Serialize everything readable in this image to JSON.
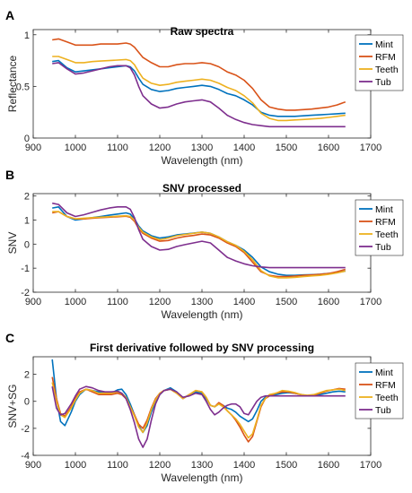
{
  "chart_data": [
    {
      "type": "line",
      "panel_label": "A",
      "title": "Raw spectra",
      "xlabel": "Wavelength (nm)",
      "ylabel": "Reflectance",
      "xlim": [
        900,
        1700
      ],
      "ylim": [
        0,
        1.05
      ],
      "xticks": [
        900,
        1000,
        1100,
        1200,
        1300,
        1400,
        1500,
        1600,
        1700
      ],
      "yticks": [
        0,
        0.5,
        1
      ],
      "ytick_labels": [
        "0",
        "0.5",
        "1"
      ],
      "grid": false,
      "legend": "top-right",
      "x": [
        945,
        960,
        980,
        1000,
        1020,
        1040,
        1060,
        1080,
        1100,
        1120,
        1130,
        1140,
        1150,
        1160,
        1180,
        1200,
        1220,
        1240,
        1260,
        1280,
        1300,
        1320,
        1340,
        1360,
        1380,
        1400,
        1420,
        1440,
        1460,
        1480,
        1500,
        1520,
        1540,
        1560,
        1580,
        1600,
        1620,
        1640
      ],
      "series": [
        {
          "name": "Mint",
          "color": "#0072BD",
          "values": [
            0.74,
            0.75,
            0.68,
            0.64,
            0.65,
            0.66,
            0.67,
            0.68,
            0.69,
            0.7,
            0.69,
            0.65,
            0.58,
            0.52,
            0.47,
            0.45,
            0.46,
            0.48,
            0.49,
            0.5,
            0.51,
            0.5,
            0.47,
            0.43,
            0.41,
            0.37,
            0.32,
            0.25,
            0.22,
            0.21,
            0.21,
            0.21,
            0.215,
            0.22,
            0.225,
            0.23,
            0.235,
            0.24
          ]
        },
        {
          "name": "RFM",
          "color": "#D95319",
          "values": [
            0.95,
            0.96,
            0.93,
            0.9,
            0.9,
            0.9,
            0.91,
            0.91,
            0.91,
            0.92,
            0.91,
            0.88,
            0.83,
            0.78,
            0.73,
            0.69,
            0.69,
            0.71,
            0.72,
            0.72,
            0.73,
            0.72,
            0.69,
            0.64,
            0.61,
            0.56,
            0.48,
            0.37,
            0.3,
            0.28,
            0.27,
            0.27,
            0.275,
            0.28,
            0.29,
            0.3,
            0.32,
            0.35
          ]
        },
        {
          "name": "Teeth",
          "color": "#EDB120",
          "values": [
            0.79,
            0.79,
            0.76,
            0.73,
            0.73,
            0.74,
            0.745,
            0.75,
            0.755,
            0.76,
            0.75,
            0.71,
            0.64,
            0.58,
            0.53,
            0.51,
            0.52,
            0.54,
            0.55,
            0.56,
            0.57,
            0.56,
            0.53,
            0.49,
            0.46,
            0.41,
            0.34,
            0.24,
            0.19,
            0.17,
            0.17,
            0.175,
            0.18,
            0.185,
            0.19,
            0.2,
            0.21,
            0.22
          ]
        },
        {
          "name": "Tub",
          "color": "#7E2F8E",
          "values": [
            0.72,
            0.73,
            0.67,
            0.62,
            0.63,
            0.65,
            0.67,
            0.69,
            0.7,
            0.7,
            0.68,
            0.61,
            0.5,
            0.41,
            0.33,
            0.29,
            0.3,
            0.33,
            0.35,
            0.36,
            0.37,
            0.35,
            0.29,
            0.22,
            0.18,
            0.15,
            0.13,
            0.12,
            0.11,
            0.11,
            0.11,
            0.11,
            0.11,
            0.11,
            0.11,
            0.11,
            0.11,
            0.11
          ]
        }
      ]
    },
    {
      "type": "line",
      "panel_label": "B",
      "title": "SNV processed",
      "xlabel": "Wavelength (nm)",
      "ylabel": "SNV",
      "xlim": [
        900,
        1700
      ],
      "ylim": [
        -2,
        2.1
      ],
      "xticks": [
        900,
        1000,
        1100,
        1200,
        1300,
        1400,
        1500,
        1600,
        1700
      ],
      "yticks": [
        -2,
        -1,
        0,
        1,
        2
      ],
      "ytick_labels": [
        "-2",
        "-1",
        "0",
        "1",
        "2"
      ],
      "grid": false,
      "legend": "top-right",
      "x": [
        945,
        960,
        980,
        1000,
        1020,
        1040,
        1060,
        1080,
        1100,
        1120,
        1130,
        1140,
        1150,
        1160,
        1180,
        1200,
        1220,
        1240,
        1260,
        1280,
        1300,
        1320,
        1340,
        1360,
        1380,
        1400,
        1420,
        1440,
        1460,
        1480,
        1500,
        1520,
        1540,
        1560,
        1580,
        1600,
        1620,
        1640
      ],
      "series": [
        {
          "name": "Mint",
          "color": "#0072BD",
          "values": [
            1.5,
            1.55,
            1.15,
            1.0,
            1.05,
            1.1,
            1.15,
            1.2,
            1.25,
            1.3,
            1.25,
            1.05,
            0.75,
            0.55,
            0.35,
            0.25,
            0.3,
            0.38,
            0.42,
            0.46,
            0.5,
            0.45,
            0.3,
            0.1,
            -0.05,
            -0.25,
            -0.55,
            -0.95,
            -1.15,
            -1.25,
            -1.3,
            -1.3,
            -1.28,
            -1.27,
            -1.25,
            -1.22,
            -1.18,
            -1.12
          ]
        },
        {
          "name": "RFM",
          "color": "#D95319",
          "values": [
            1.3,
            1.35,
            1.15,
            1.05,
            1.05,
            1.08,
            1.1,
            1.12,
            1.14,
            1.16,
            1.12,
            0.95,
            0.65,
            0.45,
            0.25,
            0.12,
            0.15,
            0.25,
            0.32,
            0.36,
            0.42,
            0.38,
            0.25,
            0.05,
            -0.1,
            -0.35,
            -0.75,
            -1.15,
            -1.3,
            -1.35,
            -1.35,
            -1.33,
            -1.3,
            -1.28,
            -1.26,
            -1.22,
            -1.15,
            -1.05
          ]
        },
        {
          "name": "Teeth",
          "color": "#EDB120",
          "values": [
            1.35,
            1.35,
            1.15,
            1.05,
            1.08,
            1.1,
            1.12,
            1.14,
            1.16,
            1.18,
            1.15,
            1.0,
            0.7,
            0.5,
            0.3,
            0.18,
            0.25,
            0.35,
            0.4,
            0.45,
            0.5,
            0.45,
            0.3,
            0.1,
            -0.05,
            -0.3,
            -0.65,
            -1.1,
            -1.32,
            -1.4,
            -1.4,
            -1.38,
            -1.35,
            -1.32,
            -1.3,
            -1.26,
            -1.2,
            -1.12
          ]
        },
        {
          "name": "Tub",
          "color": "#7E2F8E",
          "values": [
            1.7,
            1.65,
            1.3,
            1.15,
            1.22,
            1.32,
            1.42,
            1.5,
            1.55,
            1.55,
            1.45,
            1.1,
            0.6,
            0.2,
            -0.1,
            -0.25,
            -0.22,
            -0.1,
            -0.02,
            0.05,
            0.12,
            0.05,
            -0.25,
            -0.55,
            -0.7,
            -0.82,
            -0.9,
            -0.95,
            -0.98,
            -0.98,
            -0.98,
            -0.98,
            -0.98,
            -0.98,
            -0.98,
            -0.98,
            -0.98,
            -0.98
          ]
        }
      ]
    },
    {
      "type": "line",
      "panel_label": "C",
      "title": "First derivative followed by SNV processing",
      "xlabel": "Wavelength (nm)",
      "ylabel": "SNV+SG",
      "xlim": [
        900,
        1700
      ],
      "ylim": [
        -4,
        3.3
      ],
      "xticks": [
        900,
        1000,
        1100,
        1200,
        1300,
        1400,
        1500,
        1600,
        1700
      ],
      "yticks": [
        -4,
        -2,
        0,
        2
      ],
      "ytick_labels": [
        "-4",
        "-2",
        "0",
        "2"
      ],
      "grid": false,
      "legend": "top-right",
      "x": [
        945,
        955,
        965,
        975,
        990,
        1000,
        1010,
        1025,
        1040,
        1055,
        1070,
        1085,
        1100,
        1110,
        1120,
        1130,
        1140,
        1150,
        1160,
        1170,
        1180,
        1190,
        1200,
        1210,
        1225,
        1240,
        1255,
        1270,
        1285,
        1300,
        1310,
        1320,
        1330,
        1340,
        1350,
        1360,
        1370,
        1380,
        1390,
        1400,
        1410,
        1420,
        1430,
        1440,
        1450,
        1460,
        1475,
        1490,
        1505,
        1520,
        1535,
        1550,
        1565,
        1580,
        1595,
        1610,
        1625,
        1640
      ],
      "series": [
        {
          "name": "Mint",
          "color": "#0072BD",
          "values": [
            3.1,
            0.2,
            -1.5,
            -1.8,
            -0.8,
            0.0,
            0.5,
            0.9,
            0.8,
            0.7,
            0.6,
            0.6,
            0.85,
            0.9,
            0.5,
            -0.2,
            -1.0,
            -1.8,
            -2.3,
            -1.8,
            -0.8,
            0.0,
            0.5,
            0.8,
            1.0,
            0.7,
            0.2,
            0.5,
            0.7,
            0.6,
            0.2,
            -0.3,
            -0.4,
            -0.2,
            -0.3,
            -0.5,
            -0.6,
            -0.8,
            -1.1,
            -1.3,
            -1.5,
            -1.3,
            -0.7,
            0.0,
            0.3,
            0.4,
            0.5,
            0.6,
            0.65,
            0.6,
            0.5,
            0.4,
            0.4,
            0.5,
            0.6,
            0.7,
            0.75,
            0.7
          ]
        },
        {
          "name": "RFM",
          "color": "#D95319",
          "values": [
            1.8,
            0.2,
            -0.9,
            -1.1,
            -0.4,
            0.2,
            0.7,
            0.9,
            0.7,
            0.5,
            0.5,
            0.5,
            0.6,
            0.5,
            0.2,
            -0.4,
            -1.0,
            -1.7,
            -2.0,
            -1.4,
            -0.5,
            0.2,
            0.6,
            0.8,
            0.9,
            0.6,
            0.2,
            0.5,
            0.8,
            0.7,
            0.3,
            -0.3,
            -0.4,
            -0.1,
            -0.3,
            -0.7,
            -1.0,
            -1.4,
            -1.9,
            -2.5,
            -3.0,
            -2.6,
            -1.5,
            -0.4,
            0.2,
            0.4,
            0.6,
            0.7,
            0.7,
            0.6,
            0.5,
            0.4,
            0.45,
            0.6,
            0.75,
            0.85,
            0.95,
            0.9
          ]
        },
        {
          "name": "Teeth",
          "color": "#EDB120",
          "values": [
            1.4,
            0.0,
            -1.0,
            -1.2,
            -0.5,
            0.1,
            0.6,
            0.9,
            0.8,
            0.6,
            0.6,
            0.6,
            0.7,
            0.6,
            0.3,
            -0.4,
            -1.1,
            -1.9,
            -2.3,
            -1.6,
            -0.6,
            0.1,
            0.6,
            0.8,
            0.9,
            0.6,
            0.2,
            0.5,
            0.8,
            0.7,
            0.3,
            -0.3,
            -0.4,
            -0.2,
            -0.4,
            -0.7,
            -1.0,
            -1.3,
            -1.7,
            -2.2,
            -2.7,
            -2.4,
            -1.4,
            -0.3,
            0.2,
            0.5,
            0.6,
            0.8,
            0.75,
            0.65,
            0.5,
            0.45,
            0.5,
            0.65,
            0.8,
            0.85,
            0.9,
            0.8
          ]
        },
        {
          "name": "Tub",
          "color": "#7E2F8E",
          "values": [
            1.1,
            -0.5,
            -1.0,
            -0.9,
            -0.2,
            0.4,
            0.9,
            1.1,
            1.0,
            0.8,
            0.7,
            0.7,
            0.75,
            0.6,
            0.2,
            -0.6,
            -1.6,
            -2.8,
            -3.4,
            -2.8,
            -1.4,
            -0.2,
            0.5,
            0.8,
            0.9,
            0.7,
            0.3,
            0.4,
            0.6,
            0.5,
            0.0,
            -0.6,
            -1.0,
            -0.8,
            -0.5,
            -0.3,
            -0.2,
            -0.2,
            -0.4,
            -0.9,
            -1.0,
            -0.5,
            0.0,
            0.3,
            0.4,
            0.4,
            0.4,
            0.4,
            0.4,
            0.4,
            0.4,
            0.4,
            0.4,
            0.4,
            0.4,
            0.4,
            0.4,
            0.4
          ]
        }
      ]
    }
  ]
}
